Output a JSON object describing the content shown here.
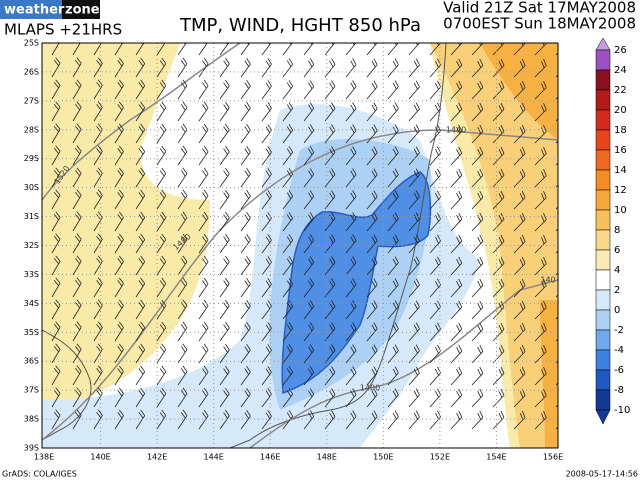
{
  "header": {
    "logo": {
      "word1": "weather",
      "word2": "zone"
    },
    "model": "MLAPS +21HRS",
    "title": "TMP, WIND, HGHT 850 hPa",
    "valid": "Valid 21Z Sat 17MAY2008",
    "local_time": "0700EST Sun 18MAY2008"
  },
  "map": {
    "latitude_labels": [
      "25S",
      "26S",
      "27S",
      "28S",
      "29S",
      "30S",
      "31S",
      "32S",
      "33S",
      "34S",
      "35S",
      "36S",
      "37S",
      "38S",
      "39S"
    ],
    "longitude_labels": [
      "138E",
      "140E",
      "142E",
      "144E",
      "146E",
      "148E",
      "150E",
      "152E",
      "154E",
      "156E"
    ],
    "contour_labels": [
      "1520",
      "1480",
      "1440",
      "1400",
      "140"
    ]
  },
  "colorbar": {
    "labels": [
      "26",
      "24",
      "22",
      "20",
      "18",
      "16",
      "14",
      "12",
      "10",
      "8",
      "6",
      "4",
      "2",
      "0",
      "-2",
      "-4",
      "-6",
      "-8",
      "-10"
    ]
  },
  "footer": {
    "credit": "GrADS: COLA/IGES",
    "timestamp": "2008-05-17-14:56"
  }
}
